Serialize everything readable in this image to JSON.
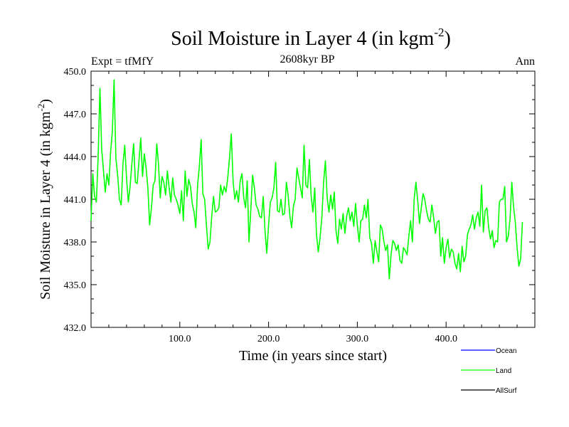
{
  "chart_data": {
    "type": "line",
    "title": "Soil Moisture in Layer 4 (in kgm",
    "title_exp": "-2",
    "title_close": ")",
    "subtitle": "2608kyr BP",
    "expt_label": "Expt = tfMfY",
    "season_label": "Ann",
    "xlabel": "Time (in years since start)",
    "ylabel": "Soil Moisture in Layer 4 (in kgm",
    "ylabel_exp": "-2",
    "ylabel_close": ")",
    "xlim": [
      0,
      500
    ],
    "ylim": [
      432,
      450
    ],
    "x_ticks": [
      100,
      200,
      300,
      400
    ],
    "x_tick_labels": [
      "100.0",
      "200.0",
      "300.0",
      "400.0"
    ],
    "y_ticks": [
      432,
      435,
      438,
      441,
      444,
      447,
      450
    ],
    "y_tick_labels": [
      "432.0",
      "435.0",
      "438.0",
      "441.0",
      "444.0",
      "447.0",
      "450.0"
    ],
    "series": [
      {
        "name": "Land",
        "color": "#00ff00",
        "x_start": 0,
        "x_step": 2,
        "values": [
          439.5,
          442.8,
          441.2,
          440.8,
          444.0,
          448.8,
          444.5,
          443.0,
          441.5,
          442.8,
          442.0,
          444.3,
          445.8,
          449.4,
          443.9,
          442.7,
          441.0,
          440.6,
          443.5,
          444.8,
          442.5,
          440.8,
          441.9,
          443.5,
          444.9,
          442.2,
          442.1,
          443.7,
          445.3,
          442.6,
          444.2,
          443.2,
          441.8,
          439.2,
          440.4,
          442.0,
          442.3,
          444.9,
          443.5,
          441.1,
          442.6,
          442.2,
          441.3,
          443.0,
          441.8,
          440.8,
          442.5,
          441.3,
          441.0,
          440.6,
          440.0,
          441.6,
          439.5,
          443.0,
          441.2,
          442.4,
          441.9,
          440.7,
          440.1,
          439.0,
          442.0,
          443.3,
          445.2,
          441.4,
          441.0,
          439.2,
          437.5,
          438.0,
          439.8,
          441.2,
          440.1,
          440.2,
          440.4,
          442.0,
          441.3,
          441.9,
          441.5,
          442.5,
          443.9,
          445.6,
          442.3,
          441.0,
          441.6,
          440.8,
          442.3,
          442.8,
          441.1,
          440.4,
          442.3,
          438.0,
          440.2,
          442.7,
          441.8,
          440.6,
          440.3,
          439.8,
          439.7,
          441.2,
          438.8,
          437.2,
          439.2,
          440.8,
          441.1,
          441.8,
          443.6,
          440.2,
          440.1,
          441.0,
          439.9,
          440.0,
          442.2,
          441.3,
          439.8,
          439.0,
          440.5,
          441.0,
          443.2,
          442.5,
          441.8,
          441.1,
          444.8,
          442.0,
          441.8,
          443.8,
          441.2,
          440.1,
          441.8,
          438.5,
          437.3,
          438.3,
          439.7,
          442.2,
          443.7,
          441.1,
          440.1,
          441.3,
          440.3,
          441.5,
          438.8,
          437.9,
          439.6,
          438.9,
          440.0,
          438.6,
          439.8,
          440.4,
          439.5,
          440.1,
          439.1,
          440.7,
          439.2,
          438.0,
          439.5,
          439.6,
          440.6,
          439.7,
          441.0,
          438.3,
          437.9,
          436.5,
          438.1,
          437.3,
          436.6,
          439.2,
          438.9,
          438.0,
          437.4,
          437.8,
          435.4,
          437.1,
          438.1,
          437.9,
          437.4,
          437.8,
          436.7,
          436.5,
          437.6,
          437.4,
          437.1,
          438.4,
          439.5,
          438.0,
          441.0,
          442.2,
          440.9,
          439.3,
          440.4,
          441.4,
          441.0,
          440.2,
          439.6,
          439.4,
          440.6,
          439.7,
          438.6,
          439.4,
          439.5,
          437.0,
          438.3,
          436.5,
          437.6,
          438.2,
          436.9,
          437.5,
          437.3,
          436.5,
          436.1,
          437.2,
          435.9,
          437.7,
          436.6,
          437.0,
          438.5,
          438.9,
          439.2,
          439.9,
          438.9,
          439.7,
          440.1,
          439.1,
          442.0,
          438.7,
          440.2,
          440.4,
          439.0,
          438.2,
          438.8,
          437.6,
          438.1,
          438.0,
          440.8,
          441.0,
          441.0,
          441.9,
          438.0,
          438.4,
          439.6,
          442.2,
          440.5,
          439.4,
          437.6,
          436.3,
          436.8,
          439.4
        ]
      },
      {
        "name": "Ocean",
        "color": "#0000ff"
      },
      {
        "name": "AllSurf",
        "color": "#000000"
      }
    ],
    "legend_position": "bottom-right",
    "legend": [
      "Ocean",
      "Land",
      "AllSurf"
    ]
  }
}
